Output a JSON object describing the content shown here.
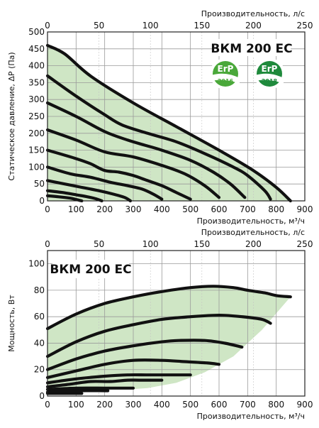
{
  "chart_data": [
    {
      "type": "line",
      "model_label": "ВКМ 200 ЕС",
      "xlabel": "Производительность, м³/ч",
      "x2label": "Производительность, л/с",
      "ylabel": "Статическое давление, ΔP (Па)",
      "xlim": [
        0,
        900
      ],
      "ylim": [
        0,
        500
      ],
      "x2lim": [
        0,
        250
      ],
      "x_ticks": [
        0,
        100,
        200,
        300,
        400,
        500,
        600,
        700,
        800,
        900
      ],
      "x2_ticks": [
        0,
        50,
        100,
        150,
        200,
        250
      ],
      "y_ticks": [
        0,
        50,
        100,
        150,
        200,
        250,
        300,
        350,
        400,
        450,
        500
      ],
      "grid": true,
      "badges": [
        {
          "logo": "ErP",
          "year": "2016",
          "color": "#4aa83a"
        },
        {
          "logo": "ErP",
          "year": "2018",
          "color": "#1f8a3c"
        }
      ],
      "operating_area": [
        [
          0,
          460
        ],
        [
          60,
          435
        ],
        [
          150,
          370
        ],
        [
          300,
          290
        ],
        [
          450,
          220
        ],
        [
          600,
          150
        ],
        [
          720,
          90
        ],
        [
          800,
          40
        ],
        [
          850,
          0
        ],
        [
          200,
          0
        ],
        [
          120,
          0
        ],
        [
          0,
          0
        ]
      ],
      "series": [
        {
          "x": [
            0,
            60,
            150,
            300,
            450,
            600,
            720,
            800,
            850
          ],
          "y": [
            460,
            435,
            370,
            290,
            220,
            150,
            90,
            40,
            0
          ]
        },
        {
          "x": [
            0,
            100,
            200,
            260,
            350,
            450,
            550,
            650,
            700,
            760,
            780
          ],
          "y": [
            370,
            310,
            255,
            225,
            200,
            175,
            140,
            100,
            75,
            30,
            5
          ]
        },
        {
          "x": [
            0,
            100,
            200,
            280,
            340,
            400,
            500,
            580,
            640,
            690
          ],
          "y": [
            290,
            250,
            205,
            180,
            165,
            150,
            120,
            85,
            50,
            10
          ]
        },
        {
          "x": [
            0,
            100,
            200,
            300,
            400,
            480,
            550,
            600
          ],
          "y": [
            210,
            180,
            145,
            130,
            105,
            80,
            45,
            10
          ]
        },
        {
          "x": [
            0,
            100,
            150,
            200,
            250,
            300,
            350,
            400,
            450,
            500
          ],
          "y": [
            150,
            125,
            110,
            90,
            85,
            75,
            60,
            45,
            25,
            5
          ]
        },
        {
          "x": [
            0,
            80,
            150,
            220,
            280,
            330,
            370,
            400
          ],
          "y": [
            100,
            80,
            70,
            55,
            45,
            35,
            20,
            5
          ]
        },
        {
          "x": [
            0,
            60,
            120,
            180,
            230,
            270,
            290
          ],
          "y": [
            60,
            50,
            40,
            30,
            20,
            10,
            0
          ]
        },
        {
          "x": [
            0,
            50,
            100,
            140,
            170,
            190
          ],
          "y": [
            30,
            25,
            18,
            12,
            6,
            0
          ]
        },
        {
          "x": [
            0,
            40,
            80,
            100,
            120
          ],
          "y": [
            15,
            12,
            8,
            4,
            0
          ]
        }
      ]
    },
    {
      "type": "line",
      "model_label": "ВКМ 200 ЕС",
      "xlabel": "Производительность, м³/ч",
      "x2label": "Производительность, л/с",
      "ylabel": "Мощность, Вт",
      "xlim": [
        0,
        900
      ],
      "ylim": [
        0,
        110
      ],
      "x2lim": [
        0,
        250
      ],
      "x_ticks": [
        0,
        100,
        200,
        300,
        400,
        500,
        600,
        700,
        800,
        900
      ],
      "x2_ticks": [
        0,
        50,
        100,
        150,
        200,
        250
      ],
      "y_ticks": [
        0,
        20,
        40,
        60,
        80,
        100
      ],
      "grid": true,
      "operating_area": [
        [
          0,
          52
        ],
        [
          150,
          67
        ],
        [
          300,
          76
        ],
        [
          450,
          81
        ],
        [
          550,
          83
        ],
        [
          650,
          82
        ],
        [
          750,
          78
        ],
        [
          850,
          75
        ],
        [
          750,
          50
        ],
        [
          650,
          30
        ],
        [
          550,
          18
        ],
        [
          450,
          10
        ],
        [
          350,
          6
        ],
        [
          280,
          5
        ],
        [
          200,
          5
        ],
        [
          100,
          3
        ],
        [
          0,
          2
        ]
      ],
      "series": [
        {
          "x": [
            0,
            100,
            200,
            300,
            400,
            500,
            580,
            650,
            700,
            760,
            800,
            850
          ],
          "y": [
            51,
            62,
            70,
            75,
            79,
            82,
            83,
            82,
            80,
            78,
            76,
            75
          ]
        },
        {
          "x": [
            0,
            100,
            200,
            300,
            400,
            500,
            580,
            620,
            680,
            750,
            780
          ],
          "y": [
            30,
            41,
            49,
            54,
            58,
            60,
            61,
            61,
            60,
            58,
            55
          ]
        },
        {
          "x": [
            0,
            100,
            200,
            300,
            400,
            460,
            550,
            620,
            680
          ],
          "y": [
            20,
            28,
            34,
            38,
            41,
            42,
            42,
            40,
            37
          ]
        },
        {
          "x": [
            0,
            100,
            200,
            300,
            400,
            480,
            560,
            600
          ],
          "y": [
            14,
            19,
            24,
            27,
            27,
            26,
            25,
            24
          ]
        },
        {
          "x": [
            0,
            100,
            200,
            280,
            350,
            430,
            500
          ],
          "y": [
            10,
            13,
            15,
            16,
            16,
            16,
            16
          ]
        },
        {
          "x": [
            0,
            80,
            150,
            220,
            280,
            320,
            400
          ],
          "y": [
            7,
            9,
            11,
            11,
            12,
            12,
            12
          ]
        },
        {
          "x": [
            0,
            100,
            200,
            250,
            300
          ],
          "y": [
            5,
            6,
            6,
            6,
            6
          ]
        },
        {
          "x": [
            0,
            100,
            200,
            210
          ],
          "y": [
            3,
            4,
            4,
            4
          ]
        },
        {
          "x": [
            0,
            60,
            100,
            120
          ],
          "y": [
            2,
            2,
            2,
            2
          ]
        }
      ]
    }
  ]
}
